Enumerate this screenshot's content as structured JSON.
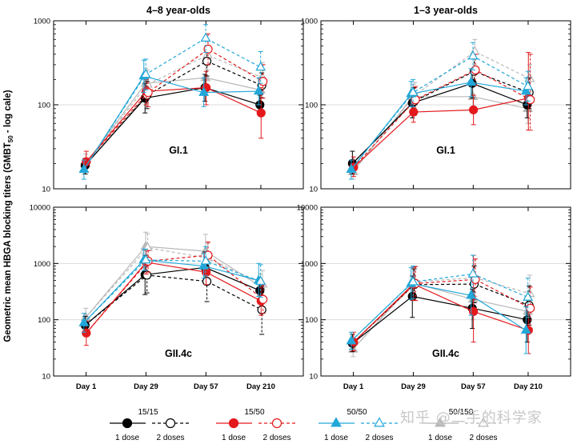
{
  "figure": {
    "ylabel_prefix": "Geometric mean HBGA blocking titers (GMBT",
    "ylabel_sub": "50",
    "ylabel_suffix": " - log cale)",
    "watermark": "知乎 @二手的科学家"
  },
  "colors": {
    "15/15": "#000000",
    "15/50": "#e3191c",
    "50/50": "#22a7d8",
    "50/150": "#b8b8b8",
    "grid": "#dcdcdc",
    "axis": "#000000"
  },
  "legend": {
    "groups": [
      {
        "label": "15/15",
        "color_key": "15/15",
        "marker": "circle",
        "one_dose": "1 dose",
        "two_doses": "2 doses"
      },
      {
        "label": "15/50",
        "color_key": "15/50",
        "marker": "circle",
        "one_dose": "1 dose",
        "two_doses": "2 doses"
      },
      {
        "label": "50/50",
        "color_key": "50/50",
        "marker": "triangle",
        "one_dose": "1 dose",
        "two_doses": "2 doses"
      },
      {
        "label": "50/150",
        "color_key": "50/150",
        "marker": "triangle",
        "one_dose": "1 dose",
        "two_doses": "2 doses"
      }
    ]
  },
  "chart_data": [
    {
      "type": "line",
      "title": "4–8 year-olds",
      "panel_label": "GI.1",
      "x": [
        "Day 1",
        "Day 29",
        "Day 57",
        "Day 210"
      ],
      "y_scale": "log",
      "ylim": [
        10,
        1000
      ],
      "yticks": [
        10,
        100,
        1000
      ],
      "grid": true,
      "series": [
        {
          "name": "15/15",
          "doses": "1 dose",
          "values": [
            19,
            120,
            160,
            100
          ],
          "err_low": [
            15,
            80,
            110,
            75
          ],
          "err_high": [
            23,
            180,
            230,
            130
          ]
        },
        {
          "name": "15/15",
          "doses": "2 doses",
          "values": [
            null,
            130,
            330,
            170
          ],
          "err_low": [
            null,
            90,
            220,
            120
          ],
          "err_high": [
            null,
            190,
            500,
            240
          ]
        },
        {
          "name": "15/50",
          "doses": "1 dose",
          "values": [
            21,
            145,
            160,
            80
          ],
          "err_low": [
            16,
            100,
            100,
            40
          ],
          "err_high": [
            28,
            200,
            250,
            160
          ]
        },
        {
          "name": "15/50",
          "doses": "2 doses",
          "values": [
            null,
            140,
            460,
            190
          ],
          "err_low": [
            null,
            95,
            300,
            120
          ],
          "err_high": [
            null,
            210,
            700,
            300
          ]
        },
        {
          "name": "50/50",
          "doses": "1 dose",
          "values": [
            17,
            220,
            140,
            145
          ],
          "err_low": [
            13,
            140,
            95,
            100
          ],
          "err_high": [
            22,
            340,
            210,
            210
          ]
        },
        {
          "name": "50/50",
          "doses": "2 doses",
          "values": [
            null,
            230,
            620,
            280
          ],
          "err_low": [
            null,
            150,
            420,
            180
          ],
          "err_high": [
            null,
            350,
            900,
            430
          ]
        },
        {
          "name": "50/150",
          "doses": "1 dose",
          "values": [
            20,
            180,
            210,
            150
          ],
          "err_low": [
            15,
            120,
            140,
            100
          ],
          "err_high": [
            26,
            270,
            320,
            220
          ]
        },
        {
          "name": "50/150",
          "doses": "2 doses",
          "values": [
            null,
            175,
            390,
            210
          ],
          "err_low": [
            null,
            120,
            260,
            140
          ],
          "err_high": [
            null,
            260,
            580,
            320
          ]
        }
      ]
    },
    {
      "type": "line",
      "title": "1–3 year-olds",
      "panel_label": "GI.1",
      "x": [
        "Day 1",
        "Day 29",
        "Day 57",
        "Day 210"
      ],
      "y_scale": "log",
      "ylim": [
        10,
        1000
      ],
      "yticks": [
        10,
        100,
        1000
      ],
      "grid": true,
      "series": [
        {
          "name": "15/15",
          "doses": "1 dose",
          "values": [
            20,
            105,
            180,
            100
          ],
          "err_low": [
            15,
            70,
            120,
            70
          ],
          "err_high": [
            28,
            150,
            260,
            140
          ]
        },
        {
          "name": "15/15",
          "doses": "2 doses",
          "values": [
            null,
            110,
            250,
            140
          ],
          "err_low": [
            null,
            75,
            170,
            90
          ],
          "err_high": [
            null,
            160,
            370,
            210
          ]
        },
        {
          "name": "15/50",
          "doses": "1 dose",
          "values": [
            18,
            82,
            87,
            120
          ],
          "err_low": [
            14,
            62,
            58,
            50
          ],
          "err_high": [
            24,
            110,
            130,
            420
          ]
        },
        {
          "name": "15/50",
          "doses": "2 doses",
          "values": [
            null,
            115,
            260,
            115
          ],
          "err_low": [
            null,
            80,
            170,
            50
          ],
          "err_high": [
            null,
            165,
            400,
            400
          ]
        },
        {
          "name": "50/50",
          "doses": "1 dose",
          "values": [
            17,
            135,
            185,
            145
          ],
          "err_low": [
            13,
            95,
            125,
            100
          ],
          "err_high": [
            22,
            190,
            270,
            210
          ]
        },
        {
          "name": "50/50",
          "doses": "2 doses",
          "values": [
            null,
            140,
            380,
            165
          ],
          "err_low": [
            null,
            95,
            260,
            110
          ],
          "err_high": [
            null,
            200,
            550,
            250
          ]
        },
        {
          "name": "50/150",
          "doses": "1 dose",
          "values": [
            16,
            125,
            125,
            90
          ],
          "err_low": [
            13,
            90,
            85,
            60
          ],
          "err_high": [
            20,
            175,
            185,
            135
          ]
        },
        {
          "name": "50/150",
          "doses": "2 doses",
          "values": [
            null,
            130,
            430,
            205
          ],
          "err_low": [
            null,
            90,
            300,
            140
          ],
          "err_high": [
            null,
            185,
            600,
            300
          ]
        }
      ]
    },
    {
      "type": "line",
      "title": "",
      "panel_label": "GII.4c",
      "x": [
        "Day 1",
        "Day 29",
        "Day 57",
        "Day 210"
      ],
      "y_scale": "log",
      "ylim": [
        10,
        10000
      ],
      "yticks": [
        10,
        100,
        1000,
        10000
      ],
      "grid": true,
      "series": [
        {
          "name": "15/15",
          "doses": "1 dose",
          "values": [
            80,
            630,
            850,
            330
          ],
          "err_low": [
            55,
            280,
            450,
            200
          ],
          "err_high": [
            115,
            1400,
            1600,
            550
          ]
        },
        {
          "name": "15/15",
          "doses": "2 doses",
          "values": [
            null,
            620,
            480,
            150
          ],
          "err_low": [
            null,
            300,
            210,
            55
          ],
          "err_high": [
            null,
            1300,
            1100,
            400
          ]
        },
        {
          "name": "15/50",
          "doses": "1 dose",
          "values": [
            58,
            1050,
            700,
            215
          ],
          "err_low": [
            35,
            650,
            420,
            120
          ],
          "err_high": [
            95,
            1700,
            1200,
            380
          ]
        },
        {
          "name": "15/50",
          "doses": "2 doses",
          "values": [
            null,
            1100,
            1400,
            230
          ],
          "err_low": [
            null,
            700,
            800,
            130
          ],
          "err_high": [
            null,
            1700,
            2400,
            420
          ]
        },
        {
          "name": "50/50",
          "doses": "1 dose",
          "values": [
            88,
            1150,
            900,
            500
          ],
          "err_low": [
            60,
            750,
            550,
            260
          ],
          "err_high": [
            130,
            1800,
            1500,
            1000
          ]
        },
        {
          "name": "50/50",
          "doses": "2 doses",
          "values": [
            null,
            1150,
            1100,
            480
          ],
          "err_low": [
            null,
            750,
            600,
            250
          ],
          "err_high": [
            null,
            1800,
            2000,
            950
          ]
        },
        {
          "name": "50/150",
          "doses": "1 dose",
          "values": [
            110,
            2000,
            1650,
            390
          ],
          "err_low": [
            75,
            1100,
            850,
            230
          ],
          "err_high": [
            160,
            3600,
            3300,
            650
          ]
        },
        {
          "name": "50/150",
          "doses": "2 doses",
          "values": [
            null,
            1900,
            1250,
            430
          ],
          "err_low": [
            null,
            1050,
            700,
            250
          ],
          "err_high": [
            null,
            3400,
            2300,
            750
          ]
        }
      ]
    },
    {
      "type": "line",
      "title": "",
      "panel_label": "GII.4c",
      "x": [
        "Day 1",
        "Day 29",
        "Day 57",
        "Day 210"
      ],
      "y_scale": "log",
      "ylim": [
        10,
        10000
      ],
      "yticks": [
        10,
        100,
        1000,
        10000
      ],
      "grid": true,
      "series": [
        {
          "name": "15/15",
          "doses": "1 dose",
          "values": [
            38,
            260,
            160,
            100
          ],
          "err_low": [
            27,
            110,
            70,
            40
          ],
          "err_high": [
            55,
            600,
            350,
            250
          ]
        },
        {
          "name": "15/15",
          "doses": "2 doses",
          "values": [
            null,
            420,
            430,
            180
          ],
          "err_low": [
            null,
            220,
            200,
            80
          ],
          "err_high": [
            null,
            800,
            900,
            400
          ]
        },
        {
          "name": "15/50",
          "doses": "1 dose",
          "values": [
            40,
            430,
            140,
            65
          ],
          "err_low": [
            28,
            220,
            40,
            25
          ],
          "err_high": [
            60,
            850,
            1400,
            170
          ]
        },
        {
          "name": "15/50",
          "doses": "2 doses",
          "values": [
            null,
            440,
            520,
            160
          ],
          "err_low": [
            null,
            220,
            230,
            70
          ],
          "err_high": [
            null,
            880,
            1200,
            380
          ]
        },
        {
          "name": "50/50",
          "doses": "1 dose",
          "values": [
            42,
            440,
            270,
            65
          ],
          "err_low": [
            30,
            230,
            120,
            25
          ],
          "err_high": [
            60,
            840,
            600,
            170
          ]
        },
        {
          "name": "50/50",
          "doses": "2 doses",
          "values": [
            null,
            470,
            650,
            250
          ],
          "err_low": [
            null,
            240,
            300,
            110
          ],
          "err_high": [
            null,
            900,
            1400,
            550
          ]
        },
        {
          "name": "50/150",
          "doses": "1 dose",
          "values": [
            30,
            450,
            230,
            140
          ],
          "err_low": [
            22,
            230,
            100,
            60
          ],
          "err_high": [
            42,
            880,
            500,
            320
          ]
        },
        {
          "name": "50/150",
          "doses": "2 doses",
          "values": [
            null,
            470,
            560,
            290
          ],
          "err_low": [
            null,
            240,
            260,
            130
          ],
          "err_high": [
            null,
            900,
            1200,
            620
          ]
        }
      ]
    }
  ]
}
